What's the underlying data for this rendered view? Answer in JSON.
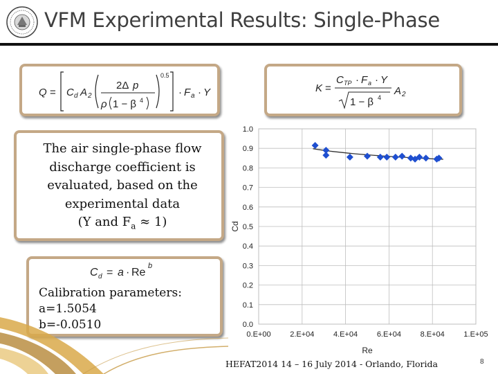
{
  "slide": {
    "title": "VFM Experimental Results: Single-Phase",
    "description": "The air single-phase flow discharge coefficient is evaluated, based on the experimental data",
    "description_note": "(Y and F",
    "description_note_sub": "a",
    "description_note_end": " ≈ 1)",
    "calibration_title": "Calibration parameters:",
    "param_a": "a=1.5054",
    "param_b": "b=-0.0510",
    "footer": "HEFAT2014 14 – 16 July 2014 - Orlando, Florida",
    "page_number": "8"
  },
  "equations": {
    "flow_rate": "Q = [C_d A_2 (2Δp / (ρ(1 − β^4)))^0.5] · F_a · Y",
    "k_factor": "K = C_TP · F_a · Y / √(1 − β^4) · A_2",
    "discharge": "C_d = a · Re^b"
  },
  "colors": {
    "frame": "#c4a886",
    "marker": "#1f4fd0",
    "fit_line": "#333333",
    "grid": "#bdbdbd"
  },
  "chart_data": {
    "type": "scatter",
    "xlabel": "Re",
    "ylabel": "Cd",
    "xlim": [
      0,
      100000
    ],
    "ylim": [
      0,
      1.0
    ],
    "x_tick_values": [
      0,
      20000,
      40000,
      60000,
      80000,
      100000
    ],
    "x_tick_labels": [
      "0.E+00",
      "2.E+04",
      "4.E+04",
      "6.E+04",
      "8.E+04",
      "1.E+05"
    ],
    "y_tick_values": [
      0,
      0.1,
      0.2,
      0.3,
      0.4,
      0.5,
      0.6,
      0.7,
      0.8,
      0.9,
      1.0
    ],
    "y_tick_labels": [
      "0.0",
      "0.1",
      "0.2",
      "0.3",
      "0.4",
      "0.5",
      "0.6",
      "0.7",
      "0.8",
      "0.9",
      "1.0"
    ],
    "grid": true,
    "x": [
      26000,
      31000,
      31000,
      42000,
      50000,
      56000,
      59000,
      63000,
      66000,
      70000,
      72000,
      74000,
      77000,
      82000,
      83000
    ],
    "y": [
      0.915,
      0.89,
      0.865,
      0.855,
      0.86,
      0.855,
      0.855,
      0.855,
      0.86,
      0.85,
      0.845,
      0.855,
      0.85,
      0.845,
      0.85
    ],
    "fit": {
      "model": "Cd = a·Re^b",
      "a": 1.5054,
      "b": -0.051,
      "x_from": 25000,
      "x_to": 85000
    }
  }
}
